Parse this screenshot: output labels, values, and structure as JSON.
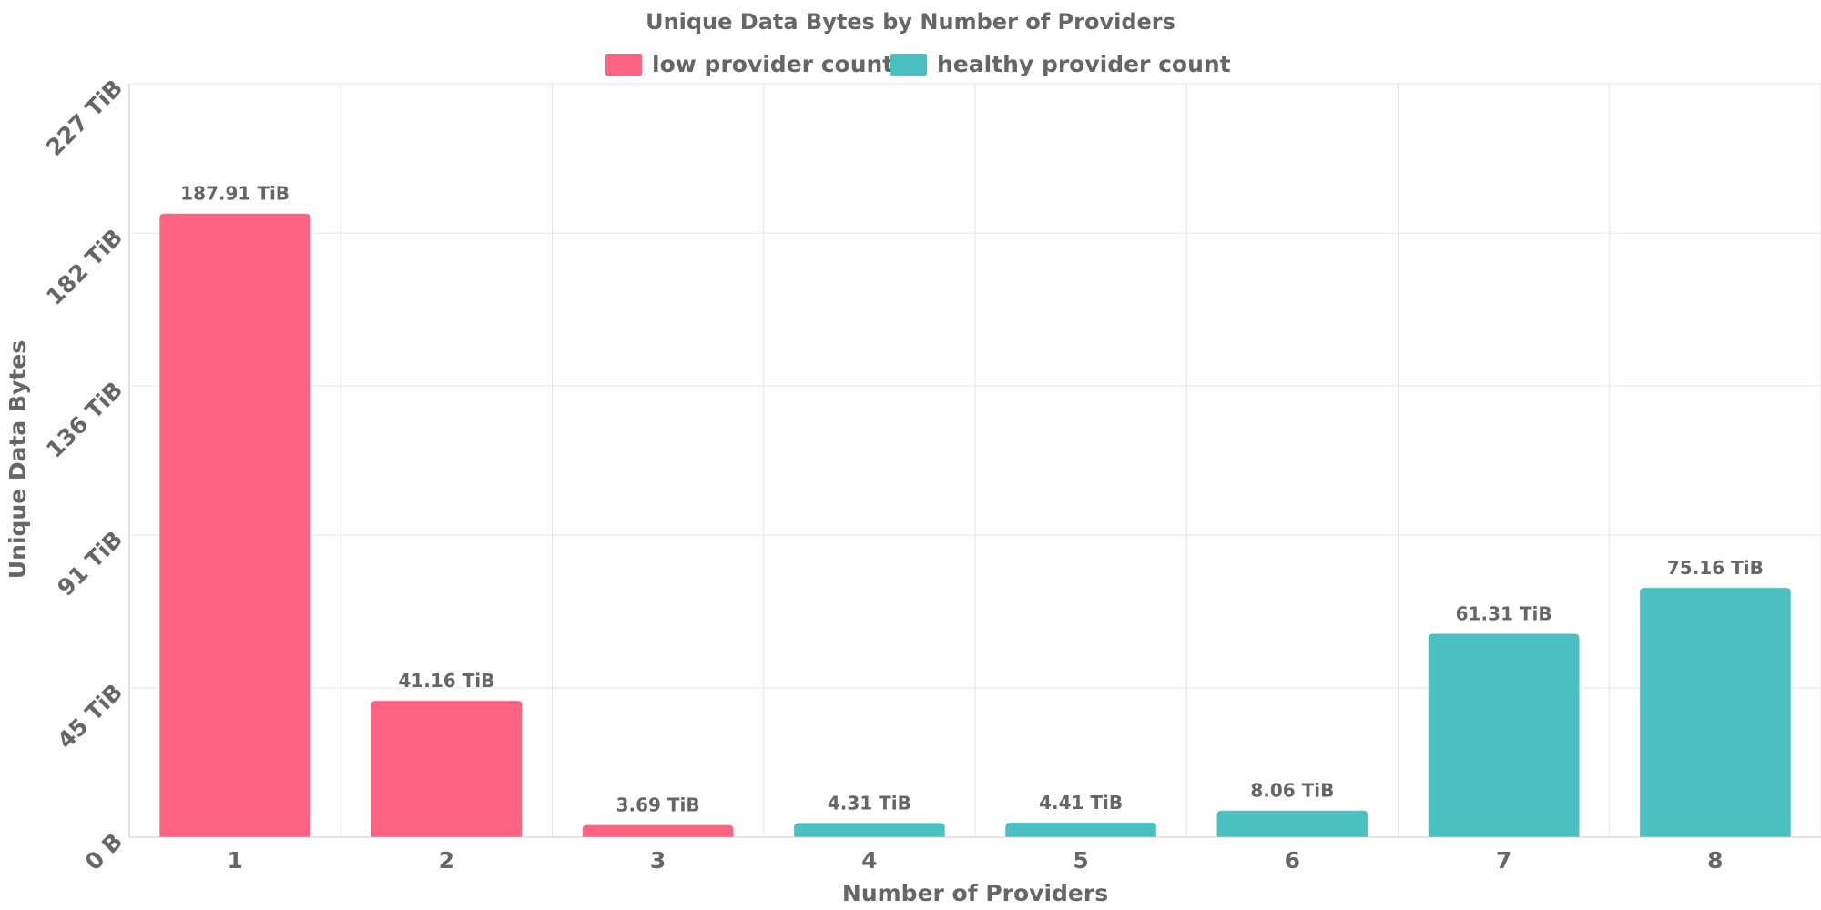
{
  "chart_data": {
    "type": "bar",
    "title": "Unique Data Bytes by Number of Providers",
    "xlabel": "Number of Providers",
    "ylabel": "Unique Data Bytes",
    "categories": [
      "1",
      "2",
      "3",
      "4",
      "5",
      "6",
      "7",
      "8"
    ],
    "values_tib": [
      187.91,
      41.16,
      3.69,
      4.31,
      4.41,
      8.06,
      61.31,
      75.16
    ],
    "data_labels": [
      "187.91 TiB",
      "41.16 TiB",
      "3.69 TiB",
      "4.31 TiB",
      "4.41 TiB",
      "8.06 TiB",
      "61.31 TiB",
      "75.16 TiB"
    ],
    "bar_series": [
      "low",
      "low",
      "low",
      "healthy",
      "healthy",
      "healthy",
      "healthy",
      "healthy"
    ],
    "series": [
      {
        "key": "low",
        "name": "low provider count",
        "color": "#ff6384"
      },
      {
        "key": "healthy",
        "name": "healthy provider count",
        "color": "#4bc0c0"
      }
    ],
    "y_unit": "TiB",
    "ylim": [
      0,
      227
    ],
    "y_ticks": [
      0,
      45,
      91,
      136,
      182,
      227
    ],
    "y_tick_labels": [
      "0 B",
      "45 TiB",
      "91 TiB",
      "136 TiB",
      "182 TiB",
      "227 TiB"
    ],
    "grid": true,
    "legend_position": "top-center"
  }
}
